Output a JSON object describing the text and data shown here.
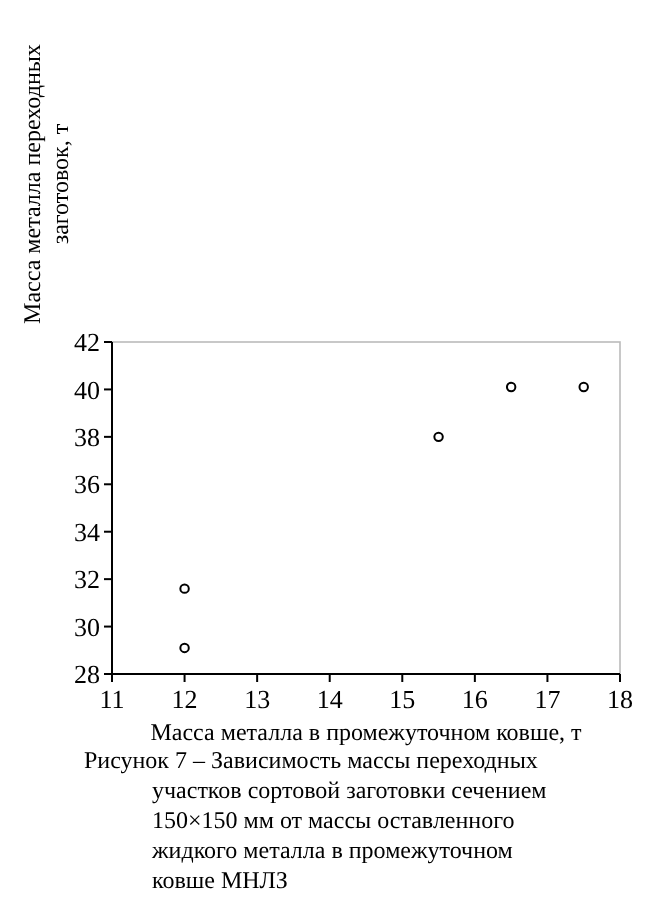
{
  "chart_data": {
    "type": "scatter",
    "xlabel": "Масса металла в промежуточном ковше, т",
    "ylabel": "Масса металла переходных заготовок, т",
    "x": [
      12,
      12,
      15.5,
      16.5,
      17.5
    ],
    "values": [
      31.6,
      29.1,
      38,
      40.1,
      40.1
    ],
    "color": "#000000",
    "marker": "circle",
    "xlim": [
      11,
      18
    ],
    "xticks": [
      11,
      12,
      13,
      14,
      15,
      16,
      17,
      18
    ],
    "ylim": [
      28,
      42
    ],
    "yticks": [
      28,
      30,
      32,
      34,
      36,
      38,
      40,
      42
    ],
    "grid": false,
    "annotations": [
      "Рисунок 7 – Зависимость массы переходных участков сортовой заготовки сечением 150×150 мм от массы оставленного жидкого металла в промежуточном ковше МНЛЗ"
    ]
  }
}
